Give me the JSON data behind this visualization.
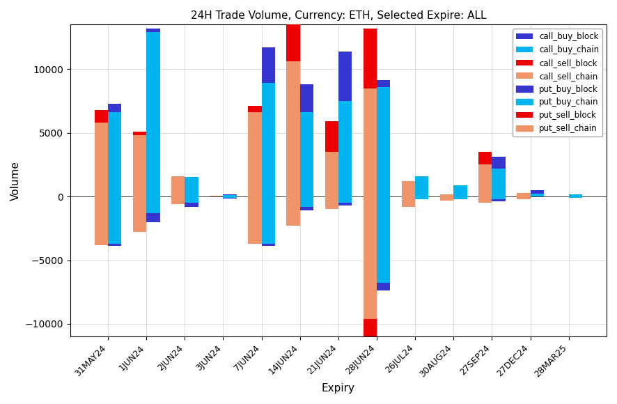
{
  "title": "24H Trade Volume, Currency: ETH, Selected Expire: ALL",
  "xlabel": "Expiry",
  "ylabel": "Volume",
  "categories": [
    "31MAY24",
    "1JUN24",
    "2JUN24",
    "3JUN24",
    "7JUN24",
    "14JUN24",
    "21JUN24",
    "28JUN24",
    "26JUL24",
    "30AUG24",
    "27SEP24",
    "27DEC24",
    "28MAR25"
  ],
  "series": {
    "call_buy_block": [
      700,
      300,
      0,
      50,
      2800,
      2200,
      3900,
      550,
      0,
      0,
      900,
      250,
      0
    ],
    "call_buy_chain": [
      6600,
      12900,
      1550,
      100,
      8900,
      6600,
      7500,
      8600,
      1600,
      900,
      2200,
      250,
      150
    ],
    "call_sell_block": [
      1000,
      300,
      0,
      0,
      500,
      4000,
      2400,
      4700,
      0,
      0,
      1000,
      0,
      0
    ],
    "call_sell_chain": [
      5800,
      4800,
      1600,
      50,
      6600,
      10600,
      3500,
      8500,
      1200,
      200,
      2500,
      300,
      0
    ],
    "put_buy_block": [
      -200,
      -700,
      -300,
      -50,
      -200,
      -300,
      -200,
      -600,
      0,
      0,
      -150,
      0,
      0
    ],
    "put_buy_chain": [
      -3700,
      -1300,
      -500,
      -100,
      -3700,
      -800,
      -500,
      -6800,
      -200,
      -200,
      -200,
      0,
      -100
    ],
    "put_sell_block": [
      0,
      0,
      0,
      0,
      0,
      0,
      0,
      -5300,
      0,
      0,
      0,
      0,
      0
    ],
    "put_sell_chain": [
      -3800,
      -2800,
      -600,
      0,
      -3700,
      -2300,
      -1000,
      -9600,
      -800,
      -300,
      -500,
      -200,
      0
    ]
  },
  "colors": {
    "call_buy_block": "#3535d0",
    "call_buy_chain": "#00b4f0",
    "call_sell_block": "#ee0000",
    "call_sell_chain": "#f0956a",
    "put_buy_block": "#3535d0",
    "put_buy_chain": "#00b4f0",
    "put_sell_block": "#ee0000",
    "put_sell_chain": "#f0956a"
  },
  "ylim": [
    -11000,
    13500
  ],
  "bar_width": 0.35,
  "figsize": [
    8.86,
    5.8
  ],
  "dpi": 100
}
